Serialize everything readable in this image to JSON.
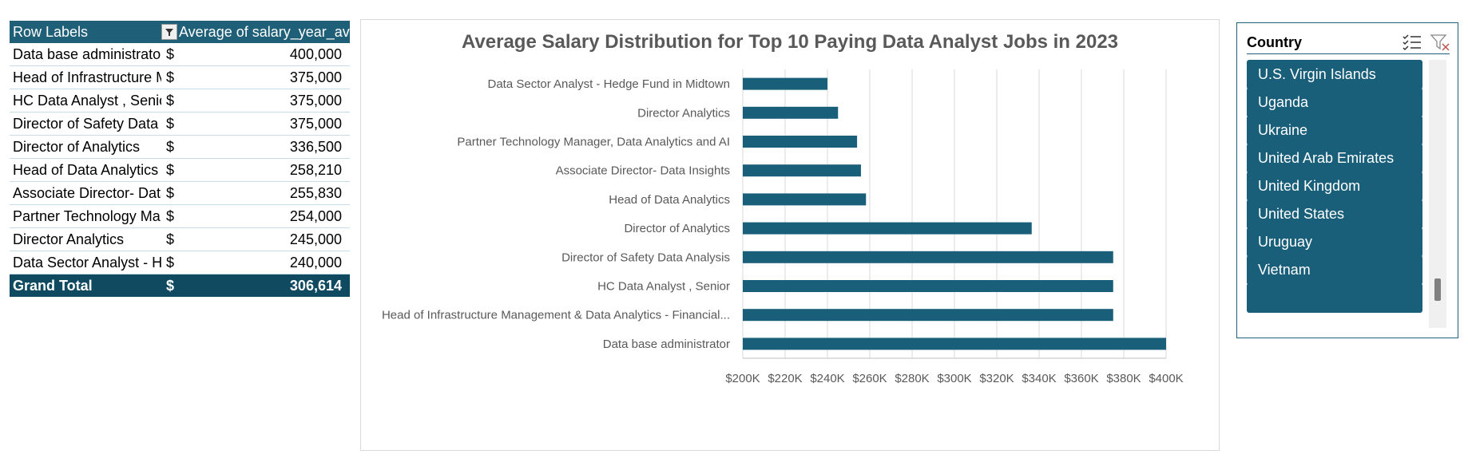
{
  "pivot": {
    "header_row_label": "Row Labels",
    "header_value_label": "Average of salary_year_avg",
    "rows": [
      {
        "label": "Data base administrator",
        "currency": "$",
        "value": "400,000"
      },
      {
        "label": "Head of Infrastructure Management & Data Analytics - Financial...",
        "currency": "$",
        "value": "375,000"
      },
      {
        "label": "HC Data Analyst , Senior",
        "currency": "$",
        "value": "375,000"
      },
      {
        "label": "Director of Safety Data Analysis",
        "currency": "$",
        "value": "375,000"
      },
      {
        "label": "Director of Analytics",
        "currency": "$",
        "value": "336,500"
      },
      {
        "label": "Head of Data Analytics",
        "currency": "$",
        "value": "258,210"
      },
      {
        "label": "Associate Director- Data Insights",
        "currency": "$",
        "value": "255,830"
      },
      {
        "label": "Partner Technology Manager, Data Analytics and AI",
        "currency": "$",
        "value": "254,000"
      },
      {
        "label": "Director Analytics",
        "currency": "$",
        "value": "245,000"
      },
      {
        "label": "Data Sector Analyst - Hedge Fund in Midtown",
        "currency": "$",
        "value": "240,000"
      }
    ],
    "total": {
      "label": "Grand Total",
      "currency": "$",
      "value": "306,614"
    }
  },
  "chart_data": {
    "type": "bar",
    "orientation": "horizontal",
    "title": "Average Salary Distribution for Top 10 Paying Data Analyst Jobs in 2023",
    "categories": [
      "Data Sector Analyst - Hedge Fund in Midtown",
      "Director Analytics",
      "Partner Technology Manager, Data Analytics and AI",
      "Associate Director- Data Insights",
      "Head of Data Analytics",
      "Director of Analytics",
      "Director of Safety Data Analysis",
      "HC Data Analyst , Senior",
      "Head of Infrastructure Management & Data Analytics - Financial...",
      "Data base administrator"
    ],
    "values": [
      240000,
      245000,
      254000,
      255830,
      258210,
      336500,
      375000,
      375000,
      375000,
      400000
    ],
    "xlim": [
      200000,
      400000
    ],
    "xticks": [
      200000,
      220000,
      240000,
      260000,
      280000,
      300000,
      320000,
      340000,
      360000,
      380000,
      400000
    ],
    "xtick_labels": [
      "$200K",
      "$220K",
      "$240K",
      "$260K",
      "$280K",
      "$300K",
      "$320K",
      "$340K",
      "$360K",
      "$380K",
      "$400K"
    ],
    "bar_color": "#1a5f7a",
    "grid": "vertical",
    "legend": "none"
  },
  "slicer": {
    "title": "Country",
    "items": [
      "U.S. Virgin Islands",
      "Uganda",
      "Ukraine",
      "United Arab Emirates",
      "United Kingdom",
      "United States",
      "Uruguay",
      "Vietnam",
      ""
    ],
    "scroll_position": 0.92
  }
}
